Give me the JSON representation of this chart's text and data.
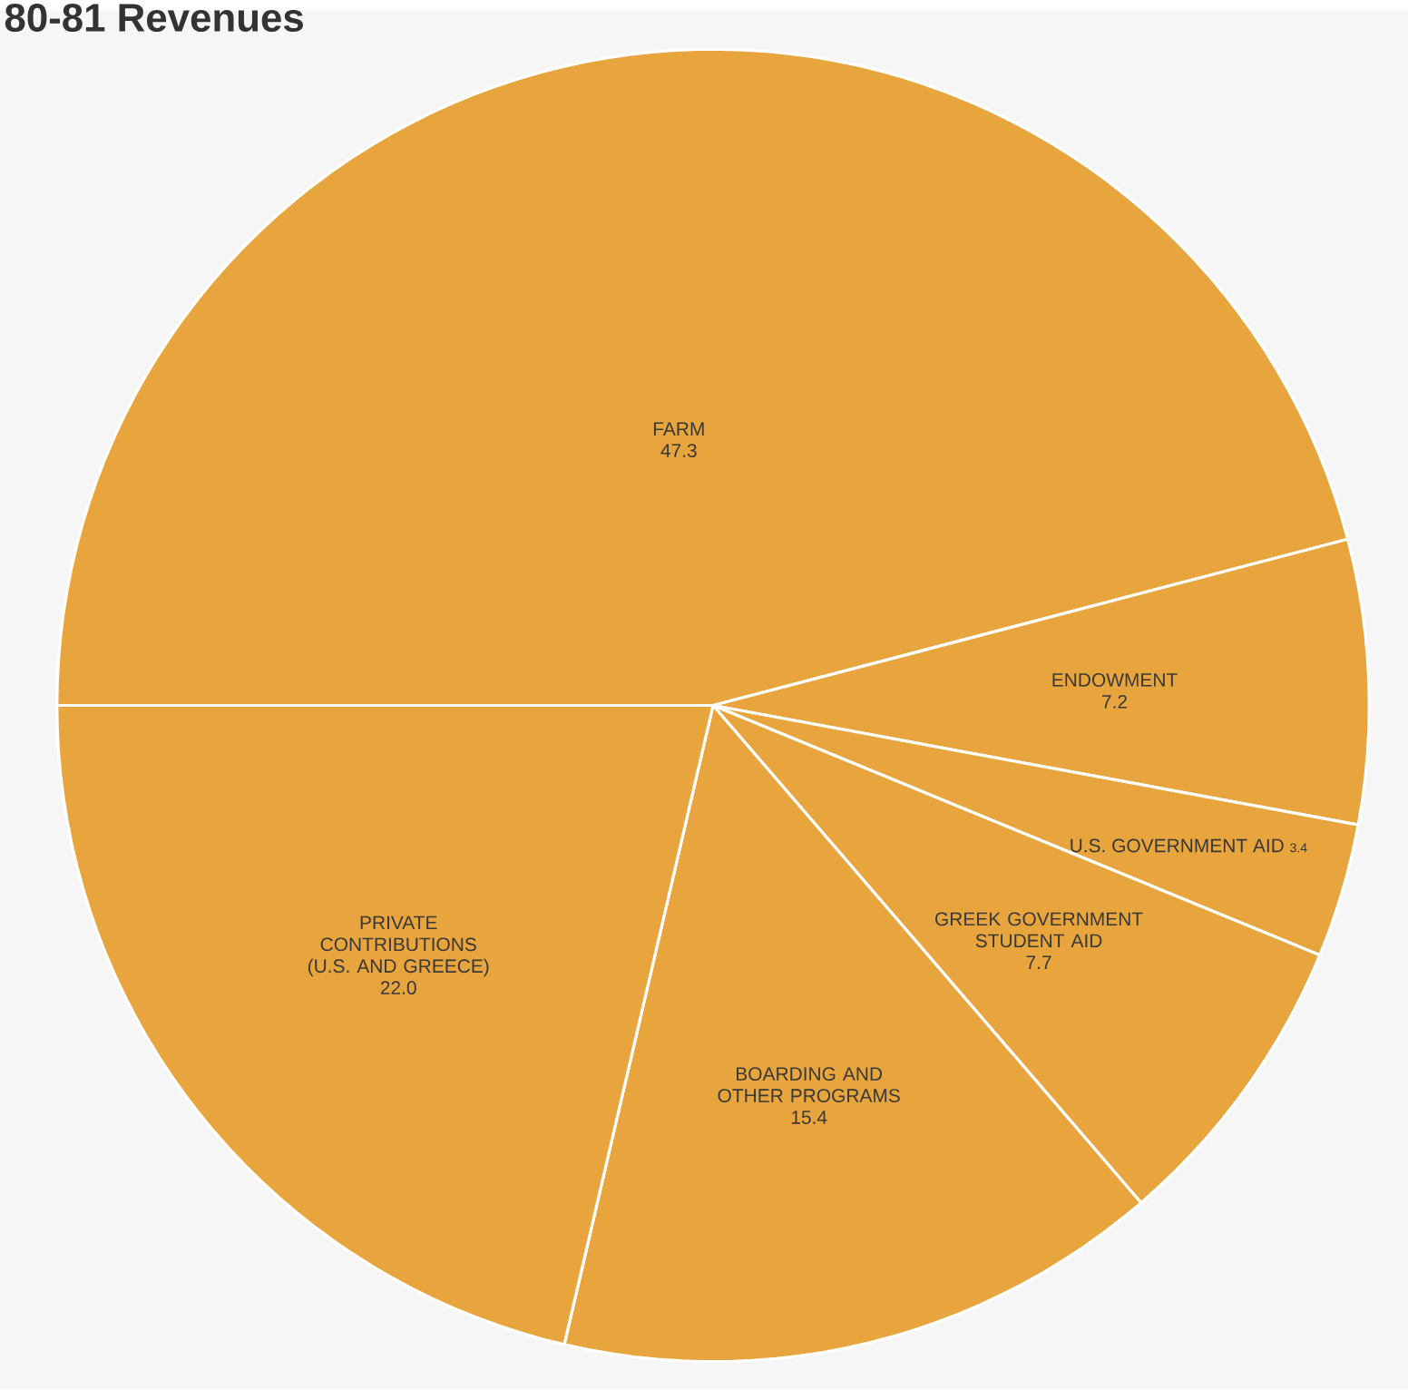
{
  "chart_data": {
    "type": "pie",
    "title": "80-81 Revenues",
    "categories": [
      "FARM",
      "ENDOWMENT",
      "U.S. GOVERNMENT AID",
      "GREEK GOVERNMENT STUDENT AID",
      "BOARDING AND OTHER PROGRAMS",
      "PRIVATE CONTRIBUTIONS (U.S. AND GREECE)"
    ],
    "values": [
      47.3,
      7.2,
      3.4,
      7.7,
      15.4,
      22.0
    ],
    "value_labels": [
      "47.3",
      "7.2",
      "3.4",
      "7.7",
      "15.4",
      "22.0"
    ],
    "colors": [
      "#e8a53e",
      "#e8a53e",
      "#e8a53e",
      "#e8a53e",
      "#e8a53e",
      "#e8a53e"
    ]
  }
}
